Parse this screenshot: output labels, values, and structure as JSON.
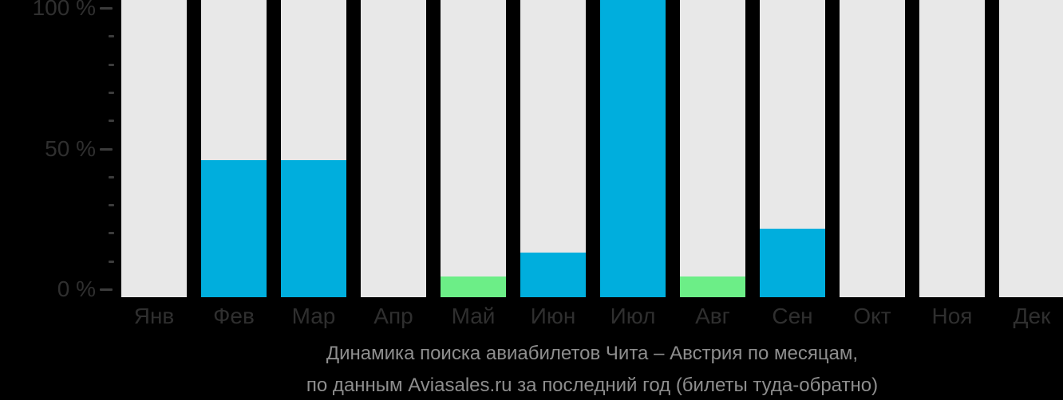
{
  "chart_data": {
    "type": "bar",
    "title": "Динамика поиска авиабилетов Чита – Австрия по месяцам,",
    "subtitle": "по данным Aviasales.ru за последний год (билеты туда-обратно)",
    "categories": [
      "Янв",
      "Фев",
      "Мар",
      "Апр",
      "Май",
      "Июн",
      "Июл",
      "Авг",
      "Сен",
      "Окт",
      "Ноя",
      "Дек"
    ],
    "values": [
      0,
      46,
      46,
      0,
      7,
      15,
      100,
      7,
      23,
      0,
      0,
      0
    ],
    "bar_color_names": [
      "none",
      "blue",
      "blue",
      "none",
      "green",
      "blue",
      "blue",
      "green",
      "blue",
      "none",
      "none",
      "none"
    ],
    "xlabel": "",
    "ylabel": "",
    "ylim": [
      0,
      100
    ],
    "grid": false,
    "legend": "none",
    "y_ticks_major": [
      {
        "label": "0 %",
        "value": 0
      },
      {
        "label": "50 %",
        "value": 50
      },
      {
        "label": "100 %",
        "value": 100
      }
    ],
    "y_ticks_minor": [
      10,
      20,
      30,
      40,
      60,
      70,
      80,
      90
    ]
  },
  "colors": {
    "background": "#000000",
    "bar_track": "#e8e8e8",
    "blue": "#00aedd",
    "green": "#6cee87",
    "axis_text": "#2f2f2f",
    "tick": "#3c3c3c",
    "title_text": "#8e8e8e"
  }
}
